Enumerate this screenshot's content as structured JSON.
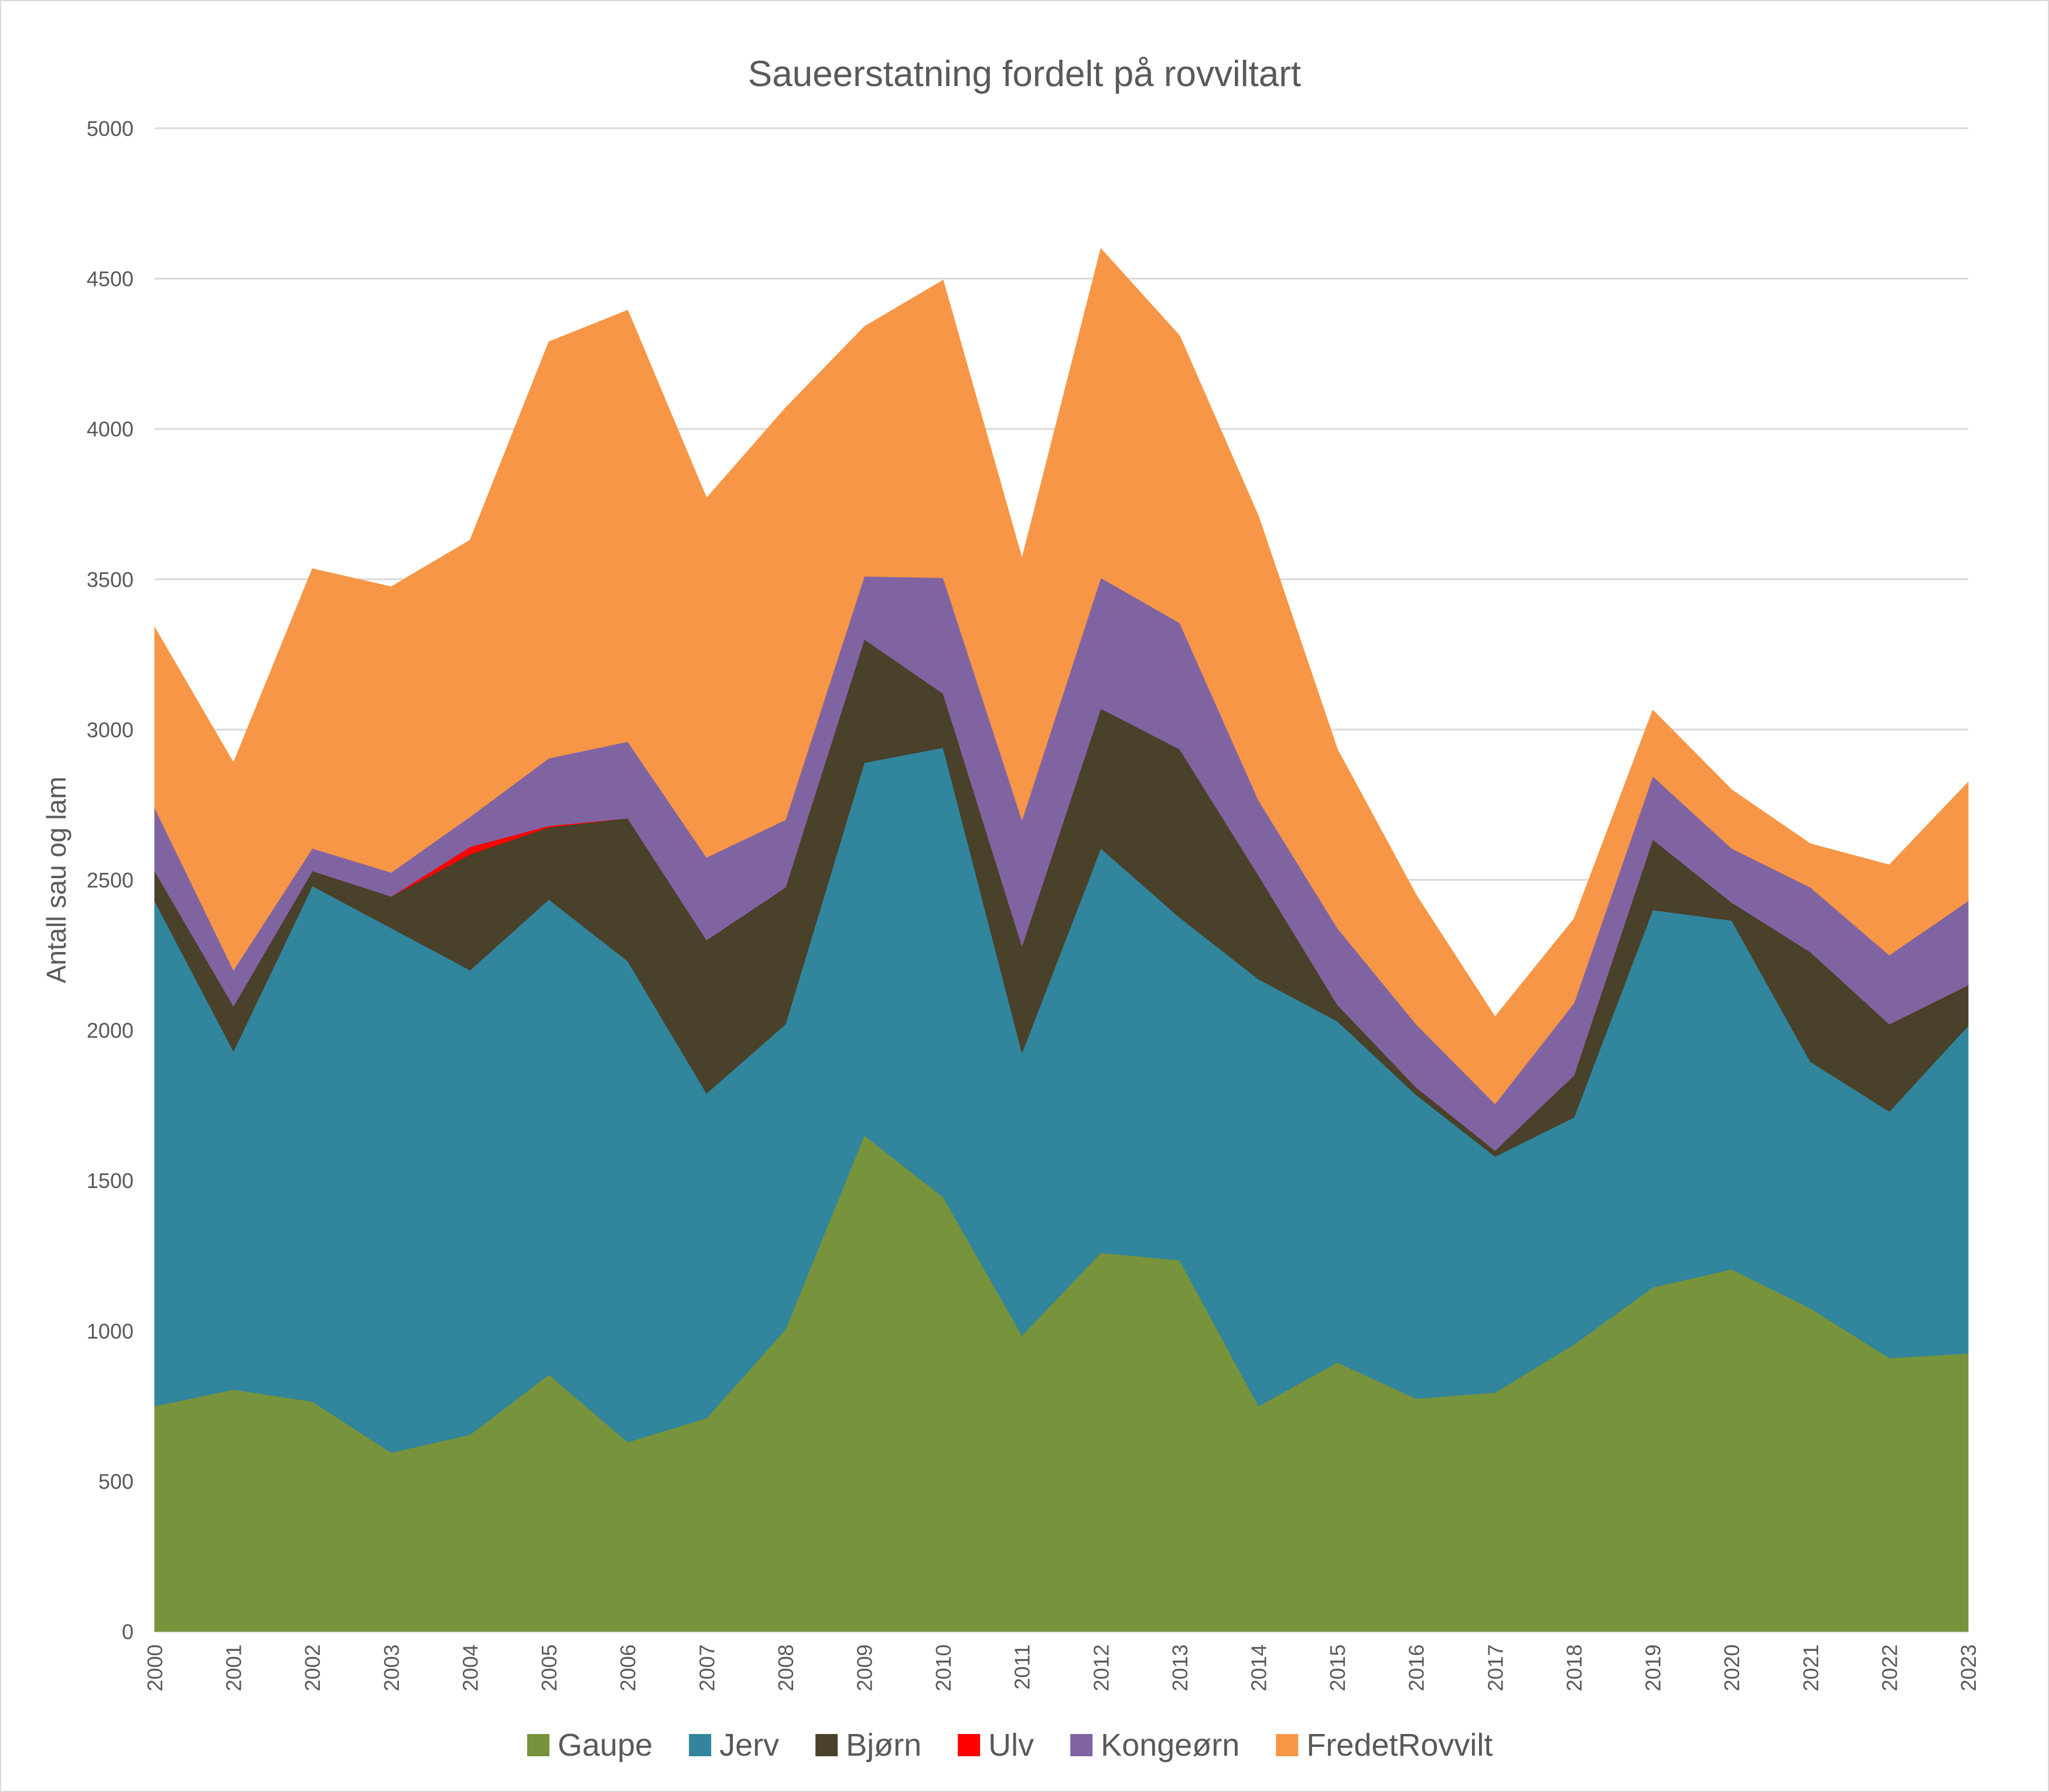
{
  "chart_data": {
    "type": "area",
    "stacked": true,
    "title": "Saueerstatning fordelt på rovviltart",
    "xlabel": "",
    "ylabel": "Antall sau og lam",
    "ylim": [
      0,
      5000
    ],
    "yticks": [
      0,
      500,
      1000,
      1500,
      2000,
      2500,
      3000,
      3500,
      4000,
      4500,
      5000
    ],
    "grid": true,
    "legend": "bottom",
    "categories": [
      "2000",
      "2001",
      "2002",
      "2003",
      "2004",
      "2005",
      "2006",
      "2007",
      "2008",
      "2009",
      "2010",
      "2011",
      "2012",
      "2013",
      "2014",
      "2015",
      "2016",
      "2017",
      "2018",
      "2019",
      "2020",
      "2021",
      "2022",
      "2023"
    ],
    "series": [
      {
        "name": "Gaupe",
        "color": "#77933c",
        "values": [
          750,
          805,
          765,
          595,
          655,
          855,
          630,
          710,
          1005,
          1650,
          1445,
          985,
          1260,
          1235,
          750,
          895,
          775,
          795,
          955,
          1145,
          1205,
          1075,
          910,
          925
        ]
      },
      {
        "name": "Jerv",
        "color": "#31859c",
        "values": [
          1680,
          1125,
          1715,
          1745,
          1545,
          1580,
          1600,
          1080,
          1015,
          1240,
          1495,
          940,
          1345,
          1140,
          1420,
          1135,
          1010,
          785,
          755,
          1255,
          1160,
          820,
          820,
          1090
        ]
      },
      {
        "name": "Bjørn",
        "color": "#49412a",
        "values": [
          100,
          150,
          50,
          105,
          385,
          240,
          475,
          510,
          455,
          410,
          180,
          355,
          465,
          560,
          345,
          55,
          25,
          20,
          140,
          235,
          60,
          365,
          290,
          135
        ]
      },
      {
        "name": "Ulv",
        "color": "#ff0000",
        "values": [
          0,
          0,
          0,
          0,
          25,
          5,
          0,
          0,
          0,
          0,
          0,
          0,
          0,
          0,
          0,
          0,
          0,
          0,
          0,
          0,
          0,
          0,
          0,
          0
        ]
      },
      {
        "name": "Kongeørn",
        "color": "#8064a2",
        "values": [
          210,
          120,
          75,
          80,
          100,
          225,
          255,
          275,
          225,
          210,
          385,
          420,
          435,
          420,
          250,
          255,
          210,
          155,
          240,
          210,
          180,
          215,
          230,
          280
        ]
      },
      {
        "name": "FredetRovvilt",
        "color": "#f79646",
        "values": [
          600,
          690,
          930,
          950,
          920,
          1385,
          1435,
          1195,
          1370,
          830,
          990,
          870,
          1095,
          955,
          945,
          595,
          430,
          290,
          280,
          220,
          195,
          145,
          300,
          395
        ]
      }
    ]
  }
}
